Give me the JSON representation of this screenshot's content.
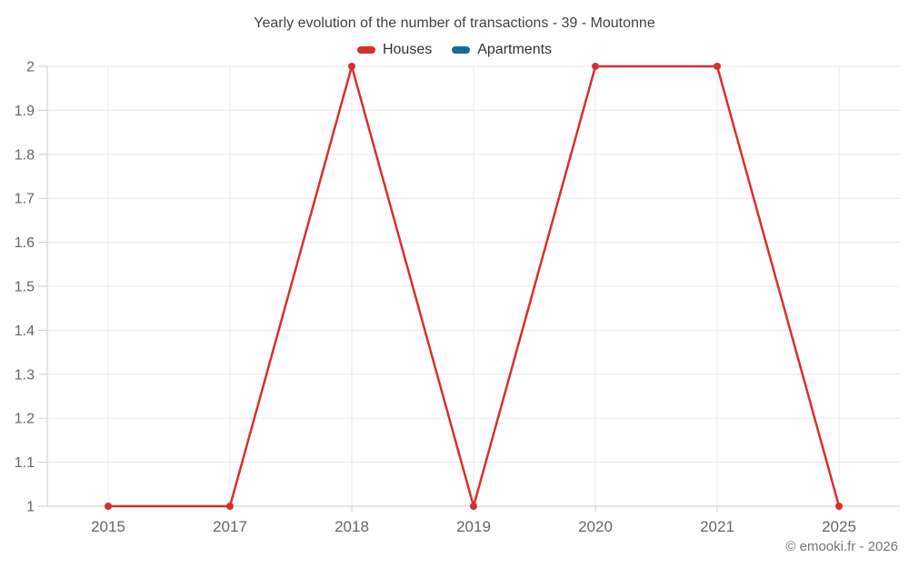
{
  "title": "Yearly evolution of the number of transactions - 39 - Moutonne",
  "footer": "© emooki.fr - 2026",
  "legend": [
    {
      "label": "Houses",
      "color": "#d6302e"
    },
    {
      "label": "Apartments",
      "color": "#17699e"
    }
  ],
  "colors": {
    "grid": "#e8e8e8",
    "axis": "#cccccc",
    "tick_text": "#666666",
    "title_text": "#424242"
  },
  "chart_data": {
    "type": "line",
    "title": "Yearly evolution of the number of transactions - 39 - Moutonne",
    "categories": [
      "2015",
      "2017",
      "2018",
      "2019",
      "2020",
      "2021",
      "2025"
    ],
    "series": [
      {
        "name": "Houses",
        "color": "#d6302e",
        "values": [
          1,
          1,
          2,
          1,
          2,
          2,
          1
        ]
      },
      {
        "name": "Apartments",
        "color": "#17699e",
        "values": []
      }
    ],
    "xlabel": "",
    "ylabel": "",
    "ylim": [
      1,
      2
    ],
    "y_tick_step": 0.1,
    "y_tick_labels": [
      "1",
      "1.1",
      "1.2",
      "1.3",
      "1.4",
      "1.5",
      "1.6",
      "1.7",
      "1.8",
      "1.9",
      "2"
    ],
    "grid": true,
    "legend_position": "top",
    "marker": "circle"
  }
}
